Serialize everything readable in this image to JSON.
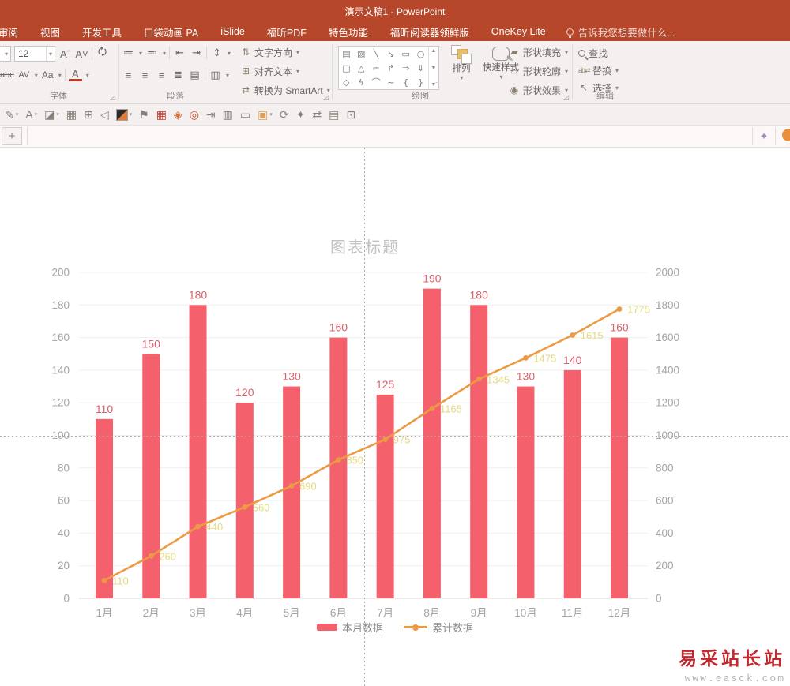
{
  "window": {
    "title": "演示文稿1 - PowerPoint"
  },
  "ribbon": {
    "tabs": [
      "审阅",
      "视图",
      "开发工具",
      "口袋动画 PA",
      "iSlide",
      "福昕PDF",
      "特色功能",
      "福昕阅读器领鲜版",
      "OneKey Lite"
    ],
    "tell_me": "告诉我您想要做什么...",
    "font_group": {
      "label": "字体",
      "font_size": "12",
      "grow_font": "Aˆ",
      "shrink_font": "A˅",
      "strikethrough": "abc",
      "char_spacing": "AV",
      "change_case": "Aa",
      "font_color": "A"
    },
    "paragraph_group": {
      "label": "段落",
      "text_direction": "文字方向",
      "align_text": "对齐文本",
      "convert_smartart": "转换为 SmartArt"
    },
    "drawing_group": {
      "label": "绘图",
      "arrange": "排列",
      "quick_styles": "快速样式",
      "shape_fill": "形状填充",
      "shape_outline": "形状轮廓",
      "shape_effects": "形状效果",
      "shape_glyphs": [
        "▤",
        "▧",
        "╲",
        "↘",
        "▭",
        "○",
        "□",
        "△",
        "⌐",
        "↱",
        "⇒",
        "⇓",
        "◇",
        "ϟ",
        "⌒",
        "~",
        "{",
        "}"
      ]
    },
    "editing_group": {
      "label": "编辑",
      "find": "查找",
      "replace": "替换",
      "select": "选择"
    }
  },
  "addin_toolbar": {
    "icons": [
      {
        "name": "pen-icon",
        "glyph": "✎",
        "dropdown": true
      },
      {
        "name": "font-color-icon",
        "glyph": "A",
        "dropdown": true
      },
      {
        "name": "fill-color-icon",
        "glyph": "◪",
        "dropdown": true
      },
      {
        "name": "table-grid-icon",
        "glyph": "▦"
      },
      {
        "name": "align-objects-icon",
        "glyph": "⊞"
      },
      {
        "name": "audio-icon",
        "glyph": "◁"
      },
      {
        "name": "theme-color-swatch",
        "swatch": true,
        "dropdown": true
      },
      {
        "name": "flag-icon",
        "glyph": "⚑"
      },
      {
        "name": "color-matrix-icon",
        "glyph": "▦",
        "tint": "#c23b2e"
      },
      {
        "name": "diamond-icon",
        "glyph": "◈",
        "tint": "#d96c3a"
      },
      {
        "name": "target-icon",
        "glyph": "◎",
        "tint": "#cf4b32"
      },
      {
        "name": "export-icon",
        "glyph": "⇥"
      },
      {
        "name": "chart-icon",
        "glyph": "▥"
      },
      {
        "name": "text-box-icon",
        "glyph": "▭"
      },
      {
        "name": "paste-icon",
        "glyph": "▣",
        "tint": "#d9a05a",
        "dropdown": true
      },
      {
        "name": "rotate-icon",
        "glyph": "⟳"
      },
      {
        "name": "pin-icon",
        "glyph": "✦"
      },
      {
        "name": "swap-icon",
        "glyph": "⇄"
      },
      {
        "name": "print-icon",
        "glyph": "▤"
      },
      {
        "name": "fit-window-icon",
        "glyph": "⊡"
      }
    ]
  },
  "guide_row": {
    "add_button": "+"
  },
  "watermark": {
    "title": "易采站长站",
    "url": "www.easck.com"
  },
  "chart_data": {
    "type": "combo",
    "title": "图表标题",
    "categories": [
      "1月",
      "2月",
      "3月",
      "4月",
      "5月",
      "6月",
      "7月",
      "8月",
      "9月",
      "10月",
      "11月",
      "12月"
    ],
    "series": [
      {
        "name": "本月数据",
        "type": "bar",
        "axis": "left",
        "color": "#F4616D",
        "label_color": "#DC5F6B",
        "values": [
          110,
          150,
          180,
          120,
          130,
          160,
          125,
          190,
          180,
          130,
          140,
          160
        ]
      },
      {
        "name": "累计数据",
        "type": "line",
        "axis": "right",
        "color": "#EC9B44",
        "label_color": "#E4D97F",
        "values": [
          110,
          260,
          440,
          560,
          690,
          850,
          975,
          1165,
          1345,
          1475,
          1615,
          1775
        ]
      }
    ],
    "left_axis": {
      "min": 0,
      "max": 200,
      "step": 20
    },
    "right_axis": {
      "min": 0,
      "max": 2000,
      "step": 200
    },
    "grid": true,
    "legend_position": "bottom"
  }
}
